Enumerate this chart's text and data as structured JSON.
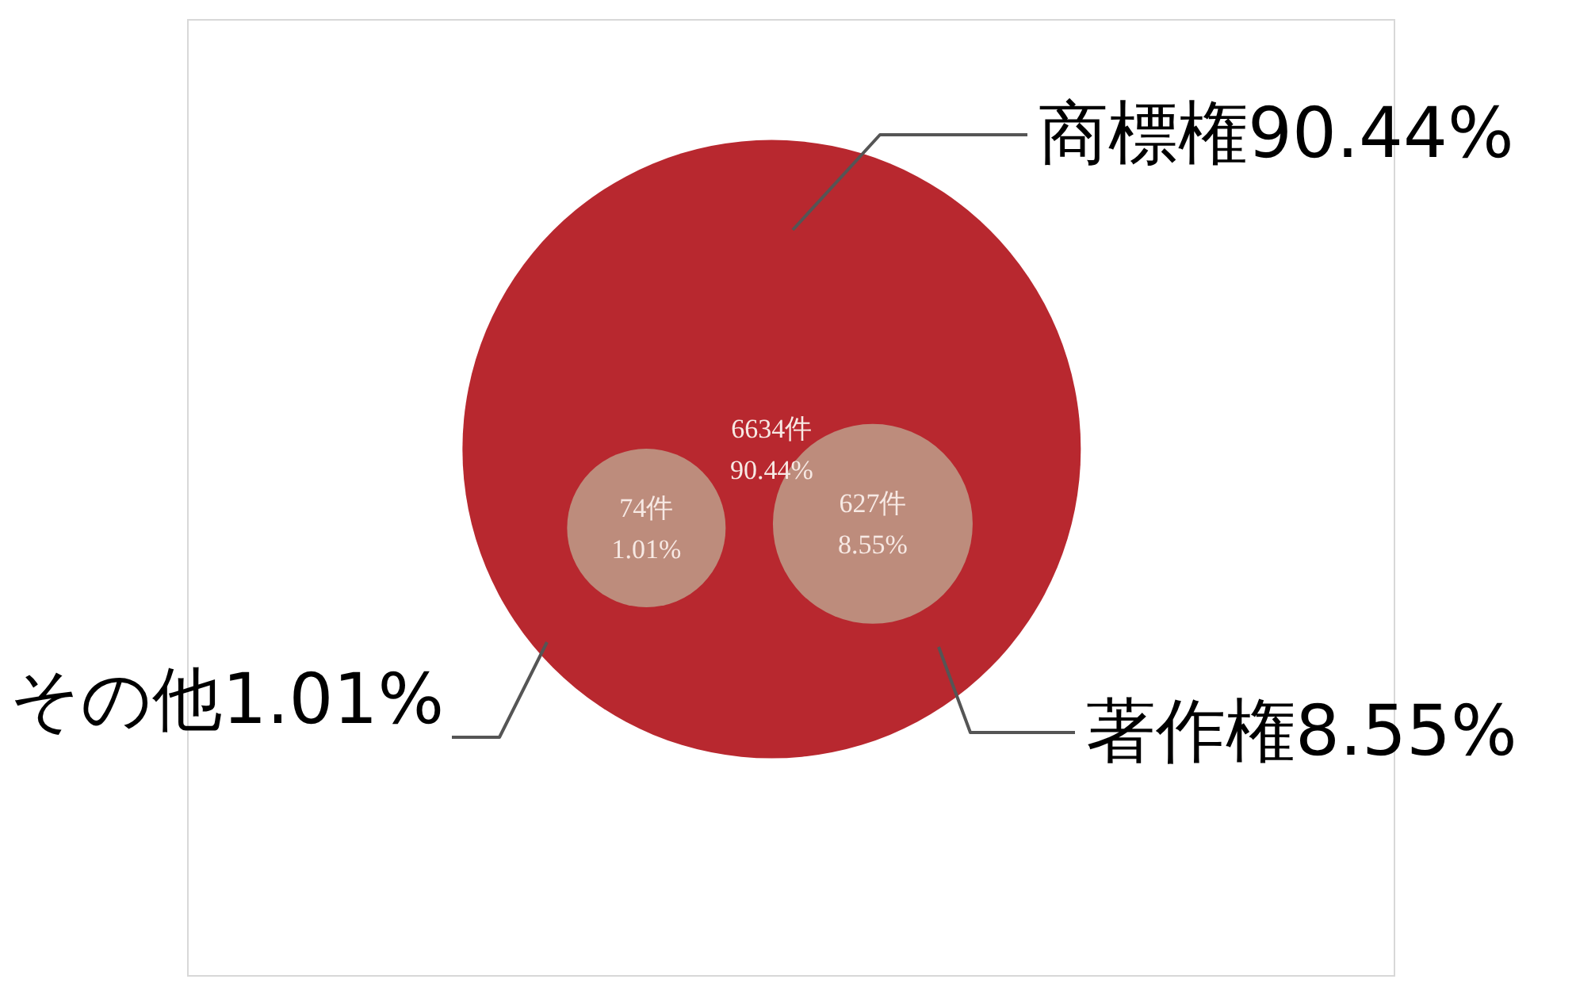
{
  "chart_data": {
    "type": "other",
    "data_labels": true,
    "categories": [
      "商標権",
      "著作権",
      "その他"
    ],
    "series": [
      {
        "values": [
          6634,
          627,
          74
        ],
        "value_labels": [
          "6634件",
          "627件",
          "74件"
        ],
        "colors": [
          "#b8282f",
          "#bd8c7c",
          "#bd8c7c"
        ]
      },
      {
        "values": [
          90.44,
          8.55,
          1.01
        ],
        "value_labels": [
          "90.44%",
          "8.55%",
          "1.01%"
        ]
      }
    ]
  }
}
